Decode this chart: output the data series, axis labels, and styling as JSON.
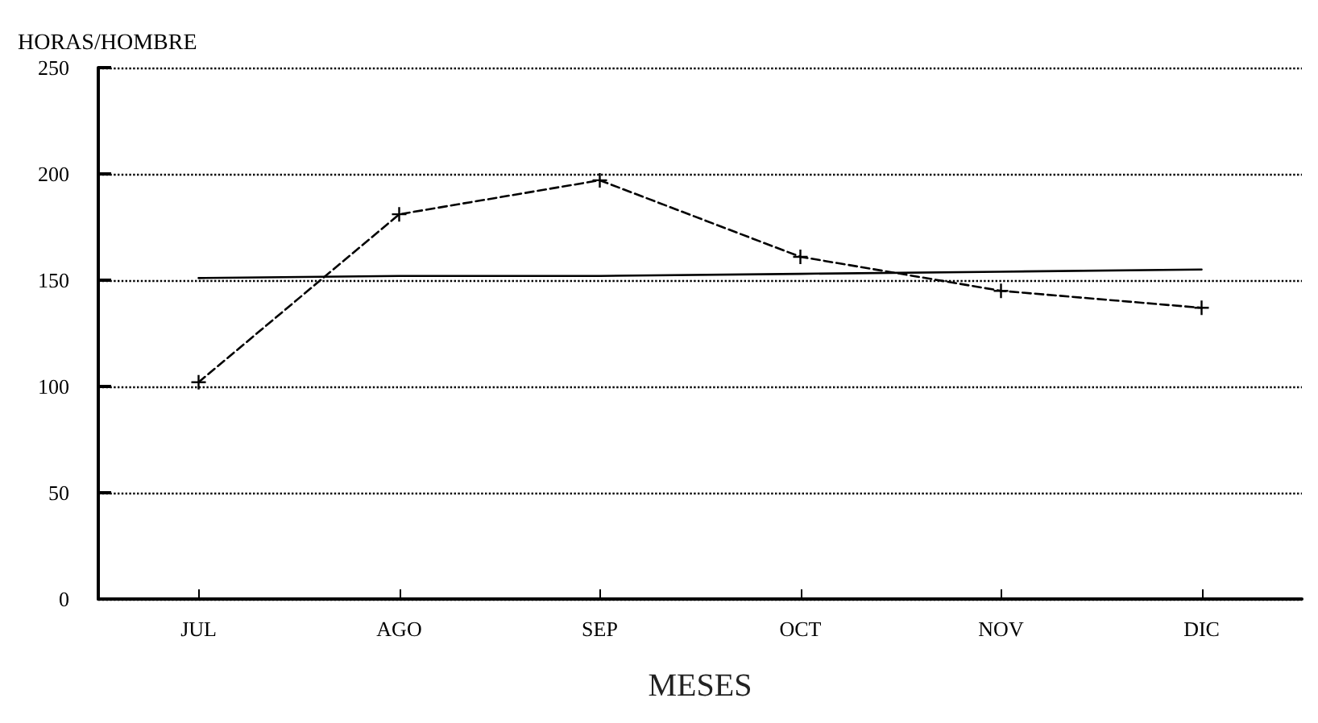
{
  "chart_data": {
    "type": "line",
    "ylabel": "HORAS/HOMBRE",
    "xlabel": "MESES",
    "categories": [
      "JUL",
      "AGO",
      "SEP",
      "OCT",
      "NOV",
      "DIC"
    ],
    "series": [
      {
        "color": "#000000",
        "values": [
          102,
          181,
          197,
          161,
          145,
          137
        ],
        "marker": "cross",
        "line_style": "dashed"
      },
      {
        "color": "#000000",
        "values": [
          151,
          152,
          152,
          153,
          154,
          155
        ],
        "marker": "none",
        "line_style": "solid"
      }
    ],
    "ylim": [
      0,
      250
    ],
    "yticks": [
      0,
      50,
      100,
      150,
      200,
      250
    ],
    "grid": "y"
  }
}
